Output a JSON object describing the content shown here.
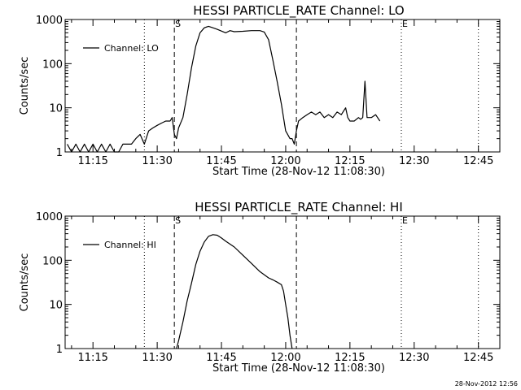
{
  "footer": {
    "timestamp": "28-Nov-2012 12:56"
  },
  "chart_data": [
    {
      "type": "line",
      "title": "HESSI PARTICLE_RATE Channel: LO",
      "xlabel": "Start Time (28-Nov-12 11:08:30)",
      "ylabel": "Counts/sec",
      "y_scale": "log",
      "ylim": [
        1,
        1000
      ],
      "xlim": [
        "11:08:30",
        "12:50:00"
      ],
      "x_ticks": [
        "11:15",
        "11:30",
        "11:45",
        "12:00",
        "12:15",
        "12:30",
        "12:45"
      ],
      "y_ticks": [
        "1",
        "10",
        "100",
        "1000"
      ],
      "legend": {
        "position": "top-left",
        "entries": [
          "Channel: LO"
        ]
      },
      "markers": [
        {
          "label": "S",
          "time": "11:34:00",
          "style": "dashed"
        },
        {
          "label": "",
          "time": "12:02:30",
          "style": "dashed"
        },
        {
          "label": "",
          "time": "11:27:00",
          "style": "dotted"
        },
        {
          "label": "E",
          "time": "12:27:00",
          "style": "dotted"
        },
        {
          "label": "",
          "time": "12:45:00",
          "style": "dotted"
        }
      ],
      "series": [
        {
          "name": "Channel: LO",
          "x": [
            "11:09:00",
            "11:10:00",
            "11:11:00",
            "11:12:00",
            "11:13:00",
            "11:14:00",
            "11:15:00",
            "11:16:00",
            "11:17:00",
            "11:18:00",
            "11:19:00",
            "11:20:00",
            "11:21:00",
            "11:22:00",
            "11:23:00",
            "11:24:00",
            "11:25:00",
            "11:26:00",
            "11:27:00",
            "11:28:00",
            "11:29:00",
            "11:30:00",
            "11:31:00",
            "11:32:00",
            "11:33:00",
            "11:33:30",
            "11:34:00",
            "11:34:30",
            "11:35:00",
            "11:36:00",
            "11:37:00",
            "11:38:00",
            "11:39:00",
            "11:40:00",
            "11:41:00",
            "11:42:00",
            "11:43:00",
            "11:44:00",
            "11:46:00",
            "11:47:00",
            "11:48:00",
            "11:50:00",
            "11:52:00",
            "11:54:00",
            "11:55:00",
            "11:56:00",
            "11:57:00",
            "11:58:00",
            "11:59:00",
            "12:00:00",
            "12:01:00",
            "12:01:30",
            "12:02:00",
            "12:02:30",
            "12:03:00",
            "12:04:00",
            "12:05:00",
            "12:06:00",
            "12:07:00",
            "12:08:00",
            "12:09:00",
            "12:10:00",
            "12:11:00",
            "12:12:00",
            "12:13:00",
            "12:14:00",
            "12:14:30",
            "12:15:00",
            "12:16:00",
            "12:17:00",
            "12:17:30",
            "12:18:00",
            "12:18:30",
            "12:19:00",
            "12:20:00",
            "12:21:00",
            "12:22:00"
          ],
          "y": [
            1.5,
            1,
            1.5,
            1,
            1.5,
            1,
            1.5,
            1,
            1.5,
            1,
            1.5,
            1,
            1,
            1.5,
            1.5,
            1.5,
            2,
            2.5,
            1.5,
            3,
            3.5,
            4,
            4.5,
            5,
            5,
            6,
            2.5,
            2,
            3.5,
            6,
            20,
            80,
            250,
            500,
            650,
            700,
            650,
            600,
            500,
            560,
            530,
            540,
            560,
            560,
            520,
            350,
            120,
            40,
            12,
            3,
            2,
            2,
            1.5,
            3,
            5,
            6,
            7,
            8,
            7,
            8,
            6,
            7,
            6,
            8,
            7,
            10,
            6,
            5,
            5,
            6,
            5.5,
            6,
            40,
            6,
            6,
            7,
            5
          ]
        }
      ]
    },
    {
      "type": "line",
      "title": "HESSI PARTICLE_RATE Channel: HI",
      "xlabel": "Start Time (28-Nov-12 11:08:30)",
      "ylabel": "Counts/sec",
      "y_scale": "log",
      "ylim": [
        1,
        1000
      ],
      "xlim": [
        "11:08:30",
        "12:50:00"
      ],
      "x_ticks": [
        "11:15",
        "11:30",
        "11:45",
        "12:00",
        "12:15",
        "12:30",
        "12:45"
      ],
      "y_ticks": [
        "1",
        "10",
        "100",
        "1000"
      ],
      "legend": {
        "position": "top-left",
        "entries": [
          "Channel: HI"
        ]
      },
      "markers": [
        {
          "label": "S",
          "time": "11:34:00",
          "style": "dashed"
        },
        {
          "label": "",
          "time": "12:02:30",
          "style": "dashed"
        },
        {
          "label": "",
          "time": "11:27:00",
          "style": "dotted"
        },
        {
          "label": "E",
          "time": "12:27:00",
          "style": "dotted"
        },
        {
          "label": "",
          "time": "12:45:00",
          "style": "dotted"
        }
      ],
      "series": [
        {
          "name": "Channel: HI",
          "x": [
            "11:34:30",
            "11:35:00",
            "11:36:00",
            "11:37:00",
            "11:38:00",
            "11:39:00",
            "11:40:00",
            "11:41:00",
            "11:42:00",
            "11:43:00",
            "11:44:00",
            "11:45:00",
            "11:46:00",
            "11:48:00",
            "11:50:00",
            "11:52:00",
            "11:54:00",
            "11:56:00",
            "11:57:00",
            "11:58:00",
            "11:59:00",
            "11:59:30",
            "12:00:00",
            "12:00:30",
            "12:01:00",
            "12:01:30"
          ],
          "y": [
            1,
            1.5,
            4,
            12,
            30,
            80,
            160,
            260,
            350,
            380,
            370,
            320,
            270,
            200,
            130,
            85,
            55,
            40,
            36,
            32,
            28,
            20,
            10,
            5,
            2,
            1
          ]
        }
      ]
    }
  ]
}
